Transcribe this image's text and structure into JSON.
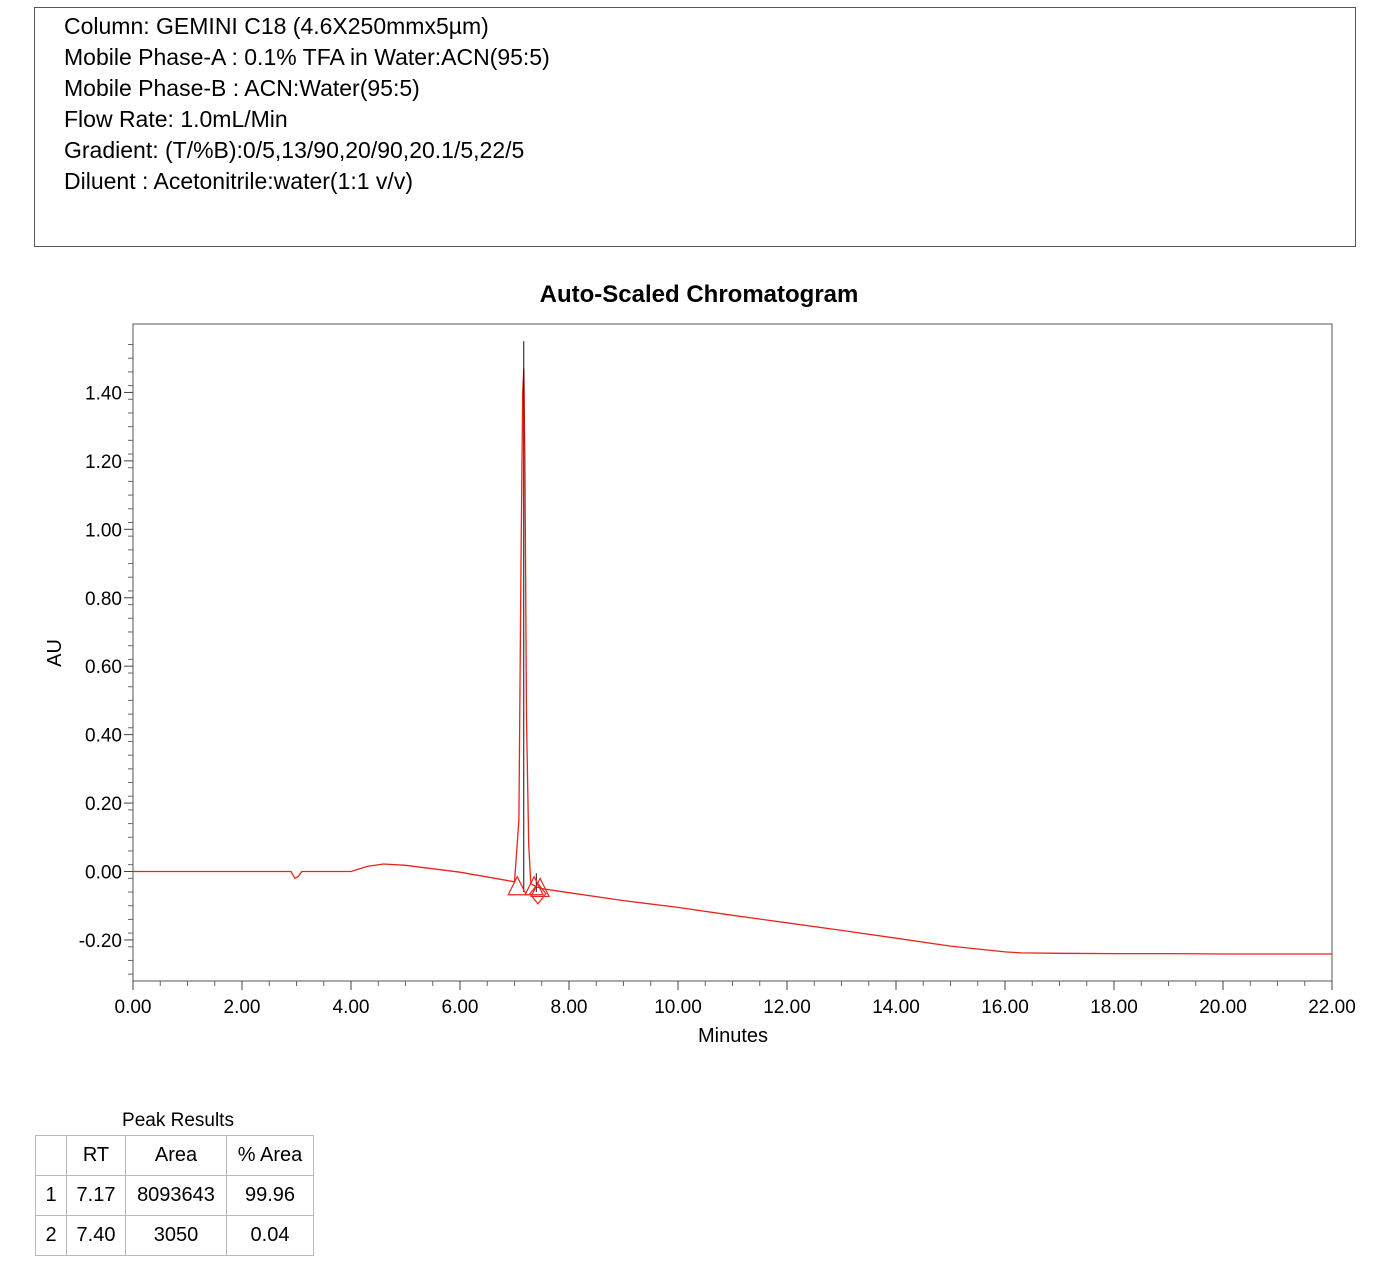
{
  "method": {
    "lines": [
      "Column: GEMINI C18 (4.6X250mmx5µm)",
      "Mobile Phase-A : 0.1% TFA in Water:ACN(95:5)",
      "Mobile Phase-B : ACN:Water(95:5)",
      "Flow Rate: 1.0mL/Min",
      "Gradient: (T/%B):0/5,13/90,20/90,20.1/5,22/5",
      "Diluent : Acetonitrile:water(1:1 v/v)"
    ]
  },
  "chart_data": {
    "type": "line",
    "title": "Auto-Scaled Chromatogram",
    "xlabel": "Minutes",
    "ylabel": "AU",
    "xlim": [
      0,
      22
    ],
    "ylim": [
      -0.32,
      1.6
    ],
    "x_ticks": [
      "0.00",
      "2.00",
      "4.00",
      "6.00",
      "8.00",
      "10.00",
      "12.00",
      "14.00",
      "16.00",
      "18.00",
      "20.00",
      "22.00"
    ],
    "y_ticks": [
      "-0.20",
      "0.00",
      "0.20",
      "0.40",
      "0.60",
      "0.80",
      "1.00",
      "1.20",
      "1.40"
    ],
    "grid": false,
    "trace_color": "#e8241c",
    "series": [
      {
        "x": [
          0,
          1,
          2,
          2.9,
          2.97,
          3.03,
          3.1,
          3.2,
          4.0,
          4.3,
          4.6,
          5.0,
          6.0,
          7.0,
          7.08,
          7.12,
          7.15,
          7.17,
          7.19,
          7.22,
          7.26,
          7.3,
          7.4,
          7.5,
          8.0,
          9.0,
          10.0,
          11.0,
          12.0,
          13.0,
          14.0,
          15.0,
          16.0,
          16.3,
          17.0,
          18.0,
          19.0,
          20.0,
          21.0,
          22.0
        ],
        "y": [
          0.0,
          0.0,
          0.0,
          0.0,
          -0.02,
          -0.015,
          0.0,
          0.0,
          0.0,
          0.015,
          0.022,
          0.018,
          -0.002,
          -0.03,
          0.15,
          0.9,
          1.4,
          1.47,
          1.2,
          0.45,
          0.08,
          -0.035,
          -0.045,
          -0.05,
          -0.062,
          -0.085,
          -0.105,
          -0.128,
          -0.15,
          -0.172,
          -0.195,
          -0.218,
          -0.235,
          -0.238,
          -0.239,
          -0.24,
          -0.24,
          -0.241,
          -0.241,
          -0.241
        ]
      }
    ],
    "peaks": [
      {
        "rt": 7.17,
        "apex": 1.55
      },
      {
        "rt": 7.4,
        "apex": -0.005
      }
    ],
    "peak_markers": [
      {
        "shape": "triangle",
        "x": 7.05,
        "y": -0.065
      },
      {
        "shape": "triangle",
        "x": 7.36,
        "y": -0.065
      },
      {
        "shape": "diamond",
        "x": 7.43,
        "y": -0.065
      },
      {
        "shape": "triangle",
        "x": 7.47,
        "y": -0.07
      }
    ]
  },
  "peak_results": {
    "caption": "Peak Results",
    "headers": [
      "",
      "RT",
      "Area",
      "% Area"
    ],
    "rows": [
      [
        "1",
        "7.17",
        "8093643",
        "99.96"
      ],
      [
        "2",
        "7.40",
        "3050",
        "0.04"
      ]
    ]
  }
}
